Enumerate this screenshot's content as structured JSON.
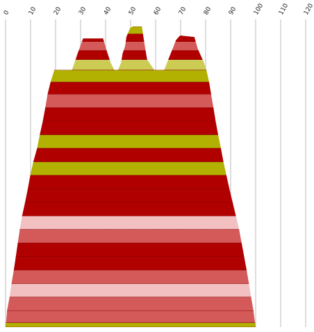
{
  "chart_data": {
    "type": "area",
    "x_ticks": [
      "0",
      "10",
      "20",
      "30",
      "40",
      "50",
      "60",
      "70",
      "80",
      "90",
      "100",
      "110",
      "120"
    ],
    "xlim": [
      0,
      120
    ],
    "grid": true,
    "band_colors": {
      "dark_red": "#b00000",
      "salmon": "#d45a5a",
      "light_pink": "#f2c0c0",
      "olive": "#b2b000",
      "light_olive": "#cccc55"
    },
    "band_scale_top": 1,
    "band_scale_bottom": 0,
    "band_series": [
      {
        "y": 0.015,
        "color": "olive"
      },
      {
        "y": 0.055,
        "color": "salmon"
      },
      {
        "y": 0.1,
        "color": "salmon"
      },
      {
        "y": 0.145,
        "color": "light_pink"
      },
      {
        "y": 0.19,
        "color": "salmon"
      },
      {
        "y": 0.235,
        "color": "dark_red"
      },
      {
        "y": 0.28,
        "color": "dark_red"
      },
      {
        "y": 0.325,
        "color": "salmon"
      },
      {
        "y": 0.37,
        "color": "light_pink"
      },
      {
        "y": 0.415,
        "color": "dark_red"
      },
      {
        "y": 0.46,
        "color": "dark_red"
      },
      {
        "y": 0.505,
        "color": "dark_red"
      },
      {
        "y": 0.55,
        "color": "olive"
      },
      {
        "y": 0.595,
        "color": "dark_red"
      },
      {
        "y": 0.64,
        "color": "olive"
      },
      {
        "y": 0.685,
        "color": "dark_red"
      },
      {
        "y": 0.73,
        "color": "dark_red"
      },
      {
        "y": 0.775,
        "color": "salmon"
      },
      {
        "y": 0.815,
        "color": "dark_red"
      },
      {
        "y": 0.855,
        "color": "olive"
      },
      {
        "y": 0.89,
        "color": "light_olive"
      },
      {
        "y": 0.92,
        "color": "dark_red"
      },
      {
        "y": 0.95,
        "color": "salmon"
      },
      {
        "y": 0.975,
        "color": "dark_red"
      }
    ],
    "outline": {
      "left": [
        [
          0.02,
          0.0
        ],
        [
          0.6,
          0.055
        ],
        [
          1.6,
          0.1
        ],
        [
          2.4,
          0.145
        ],
        [
          3.3,
          0.19
        ],
        [
          4.1,
          0.235
        ],
        [
          4.9,
          0.28
        ],
        [
          5.7,
          0.325
        ],
        [
          6.6,
          0.37
        ],
        [
          7.8,
          0.415
        ],
        [
          8.9,
          0.46
        ],
        [
          9.9,
          0.505
        ],
        [
          11.1,
          0.55
        ],
        [
          12.6,
          0.595
        ],
        [
          13.7,
          0.64
        ],
        [
          14.9,
          0.685
        ],
        [
          15.9,
          0.73
        ],
        [
          16.8,
          0.775
        ],
        [
          18.0,
          0.815
        ],
        [
          19.5,
          0.855
        ]
      ],
      "right": [
        [
          100.0,
          0.0
        ],
        [
          99.1,
          0.055
        ],
        [
          98.2,
          0.1
        ],
        [
          97.3,
          0.145
        ],
        [
          96.4,
          0.19
        ],
        [
          95.4,
          0.235
        ],
        [
          94.4,
          0.28
        ],
        [
          93.4,
          0.325
        ],
        [
          92.1,
          0.37
        ],
        [
          90.8,
          0.415
        ],
        [
          89.5,
          0.46
        ],
        [
          88.3,
          0.505
        ],
        [
          87.1,
          0.55
        ],
        [
          86.1,
          0.595
        ],
        [
          85.0,
          0.64
        ],
        [
          84.0,
          0.685
        ],
        [
          83.1,
          0.73
        ],
        [
          82.2,
          0.775
        ],
        [
          81.4,
          0.815
        ],
        [
          80.3,
          0.855
        ]
      ],
      "top": [
        [
          19.5,
          0.855
        ],
        [
          26.5,
          0.855
        ],
        [
          27.8,
          0.885
        ],
        [
          28.8,
          0.91
        ],
        [
          31.0,
          0.96
        ],
        [
          39.0,
          0.96
        ],
        [
          40.6,
          0.915
        ],
        [
          42.0,
          0.88
        ],
        [
          43.5,
          0.855
        ],
        [
          45.0,
          0.855
        ],
        [
          46.2,
          0.88
        ],
        [
          46.8,
          0.91
        ],
        [
          47.8,
          0.935
        ],
        [
          48.3,
          0.965
        ],
        [
          49.8,
          0.995
        ],
        [
          50.9,
          1.0
        ],
        [
          54.5,
          1.0
        ],
        [
          55.3,
          0.955
        ],
        [
          55.9,
          0.925
        ],
        [
          56.6,
          0.89
        ],
        [
          59.5,
          0.855
        ],
        [
          63.4,
          0.855
        ],
        [
          64.6,
          0.88
        ],
        [
          68.2,
          0.955
        ],
        [
          69.8,
          0.97
        ],
        [
          75.5,
          0.965
        ],
        [
          76.9,
          0.925
        ],
        [
          79.3,
          0.88
        ],
        [
          80.3,
          0.855
        ]
      ]
    }
  }
}
